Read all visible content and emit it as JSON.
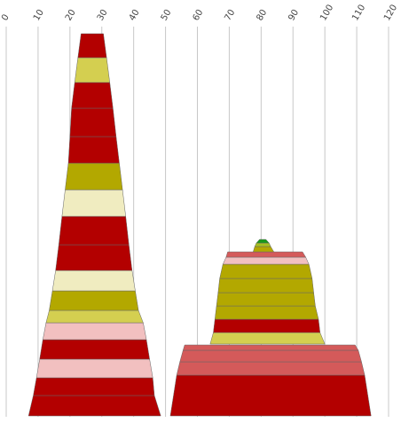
{
  "chart_data": {
    "type": "area",
    "description_hint": "stacked-trapezoid tower chart",
    "x_axis": {
      "ticks": [
        0,
        10,
        20,
        30,
        40,
        50,
        60,
        70,
        80,
        90,
        100,
        110,
        120
      ],
      "range": [
        0,
        120
      ],
      "tick_label_rotation": "-60deg",
      "tick_labels_position": "top",
      "grid": true
    },
    "colors": {
      "red": "#b30000",
      "dark_red": "#c0392b",
      "coral": "#d45a5a",
      "olive": "#b3a800",
      "yellow": "#d4cf50",
      "cream": "#f0ecc0",
      "pink": "#f2c0c0",
      "green": "#1a9a1a",
      "yellow_green": "#a8c020"
    },
    "towers": [
      {
        "layers": [
          {
            "x_left_bottom": 7.0,
            "x_right_bottom": 48.5,
            "x_left_top": 8.5,
            "x_right_top": 46.5,
            "color": "red"
          },
          {
            "x_left_bottom": 8.5,
            "x_right_bottom": 46.5,
            "x_left_top": 9.5,
            "x_right_top": 46.0,
            "color": "red"
          },
          {
            "x_left_bottom": 9.5,
            "x_right_bottom": 46.0,
            "x_left_top": 10.5,
            "x_right_top": 45.0,
            "color": "pink"
          },
          {
            "x_left_bottom": 10.5,
            "x_right_bottom": 45.0,
            "x_left_top": 11.5,
            "x_right_top": 44.0,
            "color": "red"
          },
          {
            "x_left_bottom": 11.5,
            "x_right_bottom": 44.0,
            "x_left_top": 12.5,
            "x_right_top": 43.0,
            "color": "pink"
          },
          {
            "x_left_bottom": 12.5,
            "x_right_bottom": 43.0,
            "x_left_top": 13.5,
            "x_right_top": 41.5,
            "color": "yellow"
          },
          {
            "x_left_bottom": 13.5,
            "x_right_bottom": 41.5,
            "x_left_top": 14.5,
            "x_right_top": 40.5,
            "color": "olive"
          },
          {
            "x_left_bottom": 14.5,
            "x_right_bottom": 40.5,
            "x_left_top": 15.5,
            "x_right_top": 39.5,
            "color": "cream"
          },
          {
            "x_left_bottom": 15.5,
            "x_right_bottom": 39.5,
            "x_left_top": 16.5,
            "x_right_top": 38.5,
            "color": "red"
          },
          {
            "x_left_bottom": 16.5,
            "x_right_bottom": 38.5,
            "x_left_top": 17.5,
            "x_right_top": 37.5,
            "color": "red"
          },
          {
            "x_left_bottom": 17.5,
            "x_right_bottom": 37.5,
            "x_left_top": 18.5,
            "x_right_top": 36.5,
            "color": "cream"
          },
          {
            "x_left_bottom": 18.5,
            "x_right_bottom": 36.5,
            "x_left_top": 19.5,
            "x_right_top": 35.5,
            "color": "olive"
          },
          {
            "x_left_bottom": 19.5,
            "x_right_bottom": 35.5,
            "x_left_top": 20.0,
            "x_right_top": 34.5,
            "color": "red"
          },
          {
            "x_left_bottom": 20.0,
            "x_right_bottom": 34.5,
            "x_left_top": 20.5,
            "x_right_top": 33.5,
            "color": "red"
          },
          {
            "x_left_bottom": 20.5,
            "x_right_bottom": 33.5,
            "x_left_top": 21.5,
            "x_right_top": 32.5,
            "color": "red"
          },
          {
            "x_left_bottom": 21.5,
            "x_right_bottom": 32.5,
            "x_left_top": 22.5,
            "x_right_top": 31.5,
            "color": "yellow"
          },
          {
            "x_left_bottom": 22.5,
            "x_right_bottom": 31.5,
            "x_left_top": 23.5,
            "x_right_top": 30.5,
            "color": "red"
          }
        ],
        "layer_tops": [
          446,
          426,
          405,
          383,
          364,
          350,
          328,
          305,
          276,
          244,
          214,
          184,
          154,
          122,
          93,
          65,
          38
        ],
        "base": 469
      },
      {
        "layers": [
          {
            "x_left_bottom": 51.5,
            "x_right_bottom": 114.5,
            "x_left_top": 53.5,
            "x_right_top": 112.5,
            "color": "red"
          },
          {
            "x_left_bottom": 53.5,
            "x_right_bottom": 112.5,
            "x_left_top": 54.5,
            "x_right_top": 111.5,
            "color": "coral"
          },
          {
            "x_left_bottom": 54.5,
            "x_right_bottom": 111.5,
            "x_left_top": 55.5,
            "x_right_top": 110.5,
            "color": "coral"
          },
          {
            "x_left_bottom": 55.5,
            "x_right_bottom": 110.5,
            "x_left_top": 56.0,
            "x_right_top": 109.5,
            "color": "coral"
          },
          {
            "x_left_bottom": 64.0,
            "x_right_bottom": 100.0,
            "x_left_top": 65.0,
            "x_right_top": 98.5,
            "color": "yellow"
          },
          {
            "x_left_bottom": 65.0,
            "x_right_bottom": 98.5,
            "x_left_top": 65.5,
            "x_right_top": 98.0,
            "color": "red"
          },
          {
            "x_left_bottom": 65.5,
            "x_right_bottom": 98.0,
            "x_left_top": 66.0,
            "x_right_top": 97.0,
            "color": "olive"
          },
          {
            "x_left_bottom": 66.0,
            "x_right_bottom": 97.0,
            "x_left_top": 66.5,
            "x_right_top": 96.5,
            "color": "olive"
          },
          {
            "x_left_bottom": 66.5,
            "x_right_bottom": 96.5,
            "x_left_top": 67.0,
            "x_right_top": 96.0,
            "color": "olive"
          },
          {
            "x_left_bottom": 67.0,
            "x_right_bottom": 96.0,
            "x_left_top": 68.0,
            "x_right_top": 95.0,
            "color": "olive"
          },
          {
            "x_left_bottom": 68.0,
            "x_right_bottom": 95.0,
            "x_left_top": 69.0,
            "x_right_top": 94.0,
            "color": "pink"
          },
          {
            "x_left_bottom": 69.0,
            "x_right_bottom": 94.0,
            "x_left_top": 69.5,
            "x_right_top": 93.0,
            "color": "coral"
          },
          {
            "x_left_bottom": 77.5,
            "x_right_bottom": 84.0,
            "x_left_top": 78.0,
            "x_right_top": 83.0,
            "color": "olive"
          },
          {
            "x_left_bottom": 78.0,
            "x_right_bottom": 83.0,
            "x_left_top": 78.5,
            "x_right_top": 82.5,
            "color": "yellow_green"
          },
          {
            "x_left_bottom": 78.5,
            "x_right_bottom": 82.5,
            "x_left_top": 79.5,
            "x_right_top": 81.5,
            "color": "green"
          }
        ],
        "layer_tops": [
          423,
          408,
          395,
          389,
          375,
          360,
          345,
          330,
          314,
          298,
          290,
          284,
          278,
          274,
          270
        ],
        "layer_bottoms": [
          469,
          423,
          408,
          395,
          388,
          375,
          360,
          345,
          330,
          314,
          298,
          290,
          284,
          278,
          274
        ]
      }
    ]
  }
}
